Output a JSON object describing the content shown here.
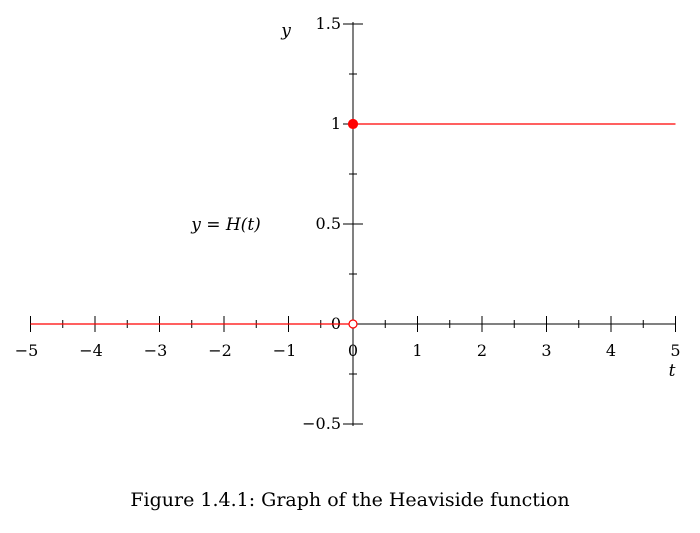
{
  "chart_data": {
    "type": "line",
    "xlabel": "t",
    "ylabel": "y",
    "xlim": [
      -5,
      5
    ],
    "ylim": [
      -0.5,
      1.5
    ],
    "x_ticks": [
      -5,
      -4,
      -3,
      -2,
      -1,
      0,
      1,
      2,
      3,
      4,
      5
    ],
    "x_tick_labels": [
      "−5",
      "−4",
      "−3",
      "−2",
      "−1",
      "0",
      "1",
      "2",
      "3",
      "4",
      "5"
    ],
    "y_ticks": [
      -0.5,
      0,
      0.5,
      1,
      1.5
    ],
    "y_tick_labels": [
      "−0.5",
      "0",
      "0.5",
      "1",
      "1.5"
    ],
    "grid": false,
    "series": [
      {
        "segments": [
          {
            "x": [
              -5,
              0
            ],
            "y": [
              0,
              0
            ]
          },
          {
            "x": [
              0,
              5
            ],
            "y": [
              1,
              1
            ]
          }
        ],
        "color": "#ff0000"
      }
    ],
    "points": [
      {
        "x": 0,
        "y": 1,
        "filled": true,
        "color": "#ff0000"
      },
      {
        "x": 0,
        "y": 0,
        "filled": false,
        "color": "#ff0000"
      }
    ],
    "annotation": "y = H(t)",
    "caption": "Figure 1.4.1: Graph of the Heaviside function"
  }
}
